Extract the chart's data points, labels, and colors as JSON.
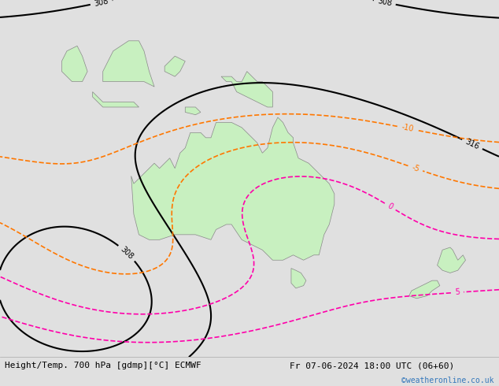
{
  "title_left": "Height/Temp. 700 hPa [gdmp][°C] ECMWF",
  "title_right": "Fr 07-06-2024 18:00 UTC (06+60)",
  "watermark": "©weatheronline.co.uk",
  "bg_color": "#e0e0e0",
  "land_color": "#c8f0c0",
  "land_border_color": "#888888",
  "figsize": [
    6.34,
    4.9
  ],
  "dpi": 100,
  "bottom_bar_color": "#ffffff",
  "text_color": "#000000",
  "watermark_color": "#3377bb",
  "contour_black_color": "#000000",
  "contour_pink_color": "#ff00aa",
  "contour_orange_color": "#ff7700",
  "label_fontsize": 7,
  "watermark_fontsize": 7,
  "title_fontsize": 8,
  "lon_min": 88,
  "lon_max": 185,
  "lat_min": -58,
  "lat_max": 12
}
